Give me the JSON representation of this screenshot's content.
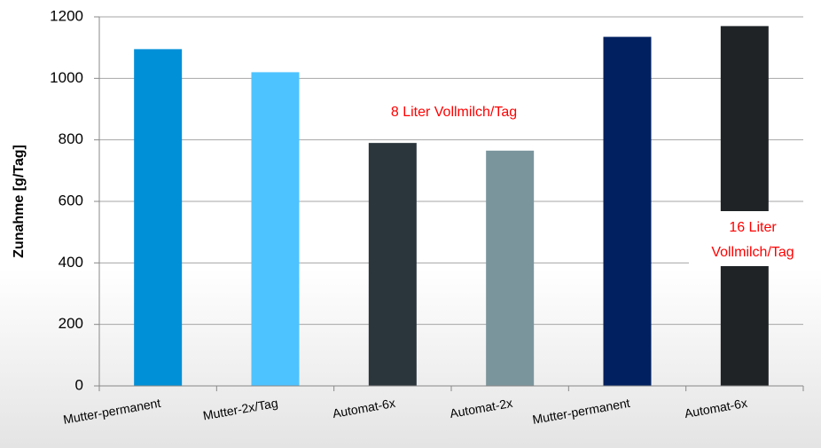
{
  "chart_data": {
    "type": "bar",
    "y_label": "Zunahme [g/Tag]",
    "categories": [
      "Mutter-permanent",
      "Mutter-2x/Tag",
      "Automat-6x",
      "Automat-2x",
      "Mutter-permanent",
      "Automat-6x"
    ],
    "values": [
      1095,
      1020,
      790,
      765,
      1135,
      1170
    ],
    "colors": [
      "#0090d8",
      "#4dc3ff",
      "#2b363c",
      "#7b959d",
      "#002060",
      "#1f2326"
    ],
    "ylim": [
      0,
      1200
    ],
    "yticks": [
      0,
      200,
      400,
      600,
      800,
      1000,
      1200
    ],
    "grid": true,
    "annotations": [
      {
        "lines": [
          "8 Liter Vollmilch/Tag"
        ],
        "color": "#ff0000"
      },
      {
        "lines": [
          "16 Liter",
          "Vollmilch/Tag"
        ],
        "color": "#ff0000"
      }
    ]
  }
}
